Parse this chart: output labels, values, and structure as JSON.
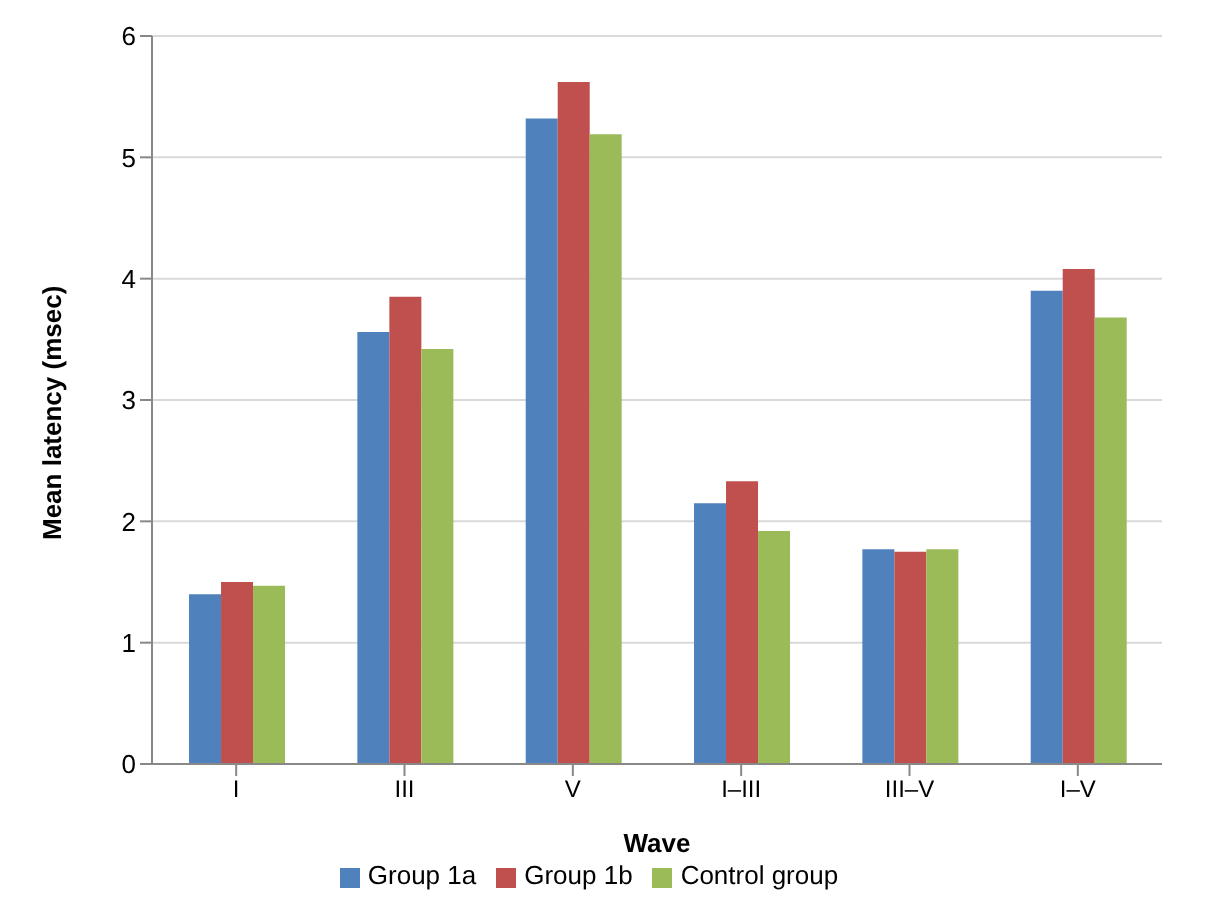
{
  "chart_data": {
    "type": "bar",
    "xlabel": "Wave",
    "ylabel": "Mean latency (msec)",
    "categories": [
      "I",
      "III",
      "V",
      "I–III",
      "III–V",
      "I–V"
    ],
    "series": [
      {
        "name": "Group 1a",
        "color": "#4f81bd",
        "values": [
          1.4,
          3.56,
          5.32,
          2.15,
          1.77,
          3.9
        ]
      },
      {
        "name": "Group 1b",
        "color": "#c0504d",
        "values": [
          1.5,
          3.85,
          5.62,
          2.33,
          1.75,
          4.08
        ]
      },
      {
        "name": "Control group",
        "color": "#9bbb59",
        "values": [
          1.47,
          3.42,
          5.19,
          1.92,
          1.77,
          3.68
        ]
      }
    ],
    "ylim": [
      0,
      6
    ],
    "yticks": [
      0,
      1,
      2,
      3,
      4,
      5,
      6
    ],
    "grid": "y",
    "legend": "bottom"
  }
}
